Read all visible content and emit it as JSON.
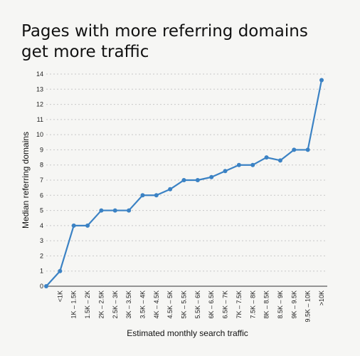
{
  "chart_data": {
    "type": "line",
    "title_lines": [
      "Pages with more referring domains",
      "get more traffic"
    ],
    "xlabel": "Estimated monthly search traffic",
    "ylabel": "Median referring domains",
    "categories": [
      "",
      "<1K",
      "1K – 1.5K",
      "1.5K – 2K",
      "2K – 2.5K",
      "2.5K – 3K",
      "3K – 3.5K",
      "3.5K – 4K",
      "4K – 4.5K",
      "4.5K – 5K",
      "5K – 5.5K",
      "5.5K – 6K",
      "6K – 6.5K",
      "6.5K – 7K",
      "7K – 7.5K",
      "7.5K – 8K",
      "8K – 8.5K",
      "8.5K – 9K",
      "9K – 9.5K",
      "9.5K – 10K",
      ">10K"
    ],
    "series": [
      {
        "values": [
          0,
          1,
          4,
          4,
          5,
          5,
          5,
          6,
          6,
          6.4,
          7,
          7,
          7.2,
          7.6,
          8,
          8,
          8.5,
          8.3,
          9,
          9,
          13.6
        ]
      }
    ],
    "ylim": [
      0,
      14
    ],
    "yticks": [
      0,
      1,
      2,
      3,
      4,
      5,
      6,
      7,
      8,
      9,
      10,
      11,
      12,
      13,
      14
    ],
    "grid": "horizontal dotted",
    "line_color": "#3b82c4"
  }
}
